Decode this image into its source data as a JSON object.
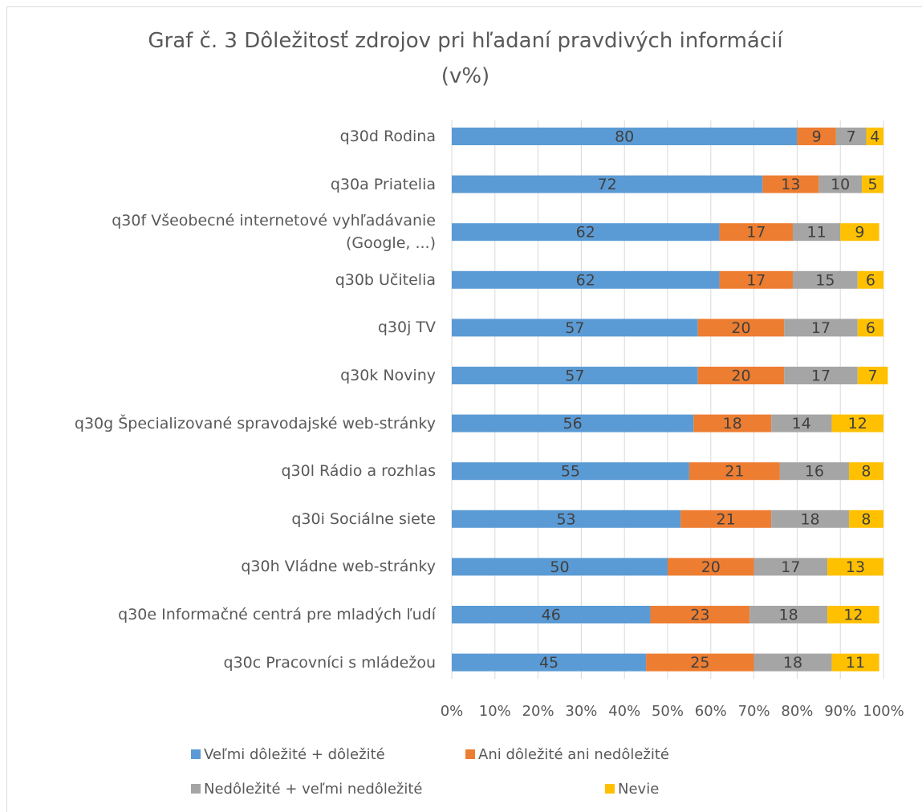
{
  "chart_data": {
    "type": "bar",
    "orientation": "horizontal",
    "stacked": true,
    "title": "Graf č. 3 Dôležitosť zdrojov pri hľadaní pravdivých informácií\n(v%)",
    "categories": [
      "q30d Rodina",
      "q30a Priatelia",
      "q30f Všeobecné internetové vyhľadávanie\n(Google, ...)",
      "q30b Učitelia",
      "q30j TV",
      "q30k Noviny",
      "q30g Špecializované spravodajské web-stránky",
      "q30l Rádio a rozhlas",
      "q30i Sociálne siete",
      "q30h Vládne web-stránky",
      "q30e Informačné centrá pre mladých ľudí",
      "q30c Pracovníci s mládežou"
    ],
    "series": [
      {
        "name": "Veľmi dôležité + dôležité",
        "color": "#5b9bd5",
        "values": [
          80,
          72,
          62,
          62,
          57,
          57,
          56,
          55,
          53,
          50,
          46,
          45
        ]
      },
      {
        "name": "Ani dôležité ani nedôležité",
        "color": "#ed7d31",
        "values": [
          9,
          13,
          17,
          17,
          20,
          20,
          18,
          21,
          21,
          20,
          23,
          25
        ]
      },
      {
        "name": "Nedôležité + veľmi nedôležité",
        "color": "#a5a5a5",
        "values": [
          7,
          10,
          11,
          15,
          17,
          17,
          14,
          16,
          18,
          17,
          18,
          18
        ]
      },
      {
        "name": "Nevie",
        "color": "#ffc000",
        "values": [
          4,
          5,
          9,
          6,
          6,
          7,
          12,
          8,
          8,
          13,
          12,
          11
        ]
      }
    ],
    "xlim": [
      0,
      100
    ],
    "xticks": [
      {
        "value": 0,
        "label": "0%"
      },
      {
        "value": 10,
        "label": "10%"
      },
      {
        "value": 20,
        "label": "20%"
      },
      {
        "value": 30,
        "label": "30%"
      },
      {
        "value": 40,
        "label": "40%"
      },
      {
        "value": 50,
        "label": "50%"
      },
      {
        "value": 60,
        "label": "60%"
      },
      {
        "value": 70,
        "label": "70%"
      },
      {
        "value": 80,
        "label": "80%"
      },
      {
        "value": 90,
        "label": "90%"
      },
      {
        "value": 100,
        "label": "100%"
      }
    ],
    "grid": true,
    "legend": "bottom"
  }
}
